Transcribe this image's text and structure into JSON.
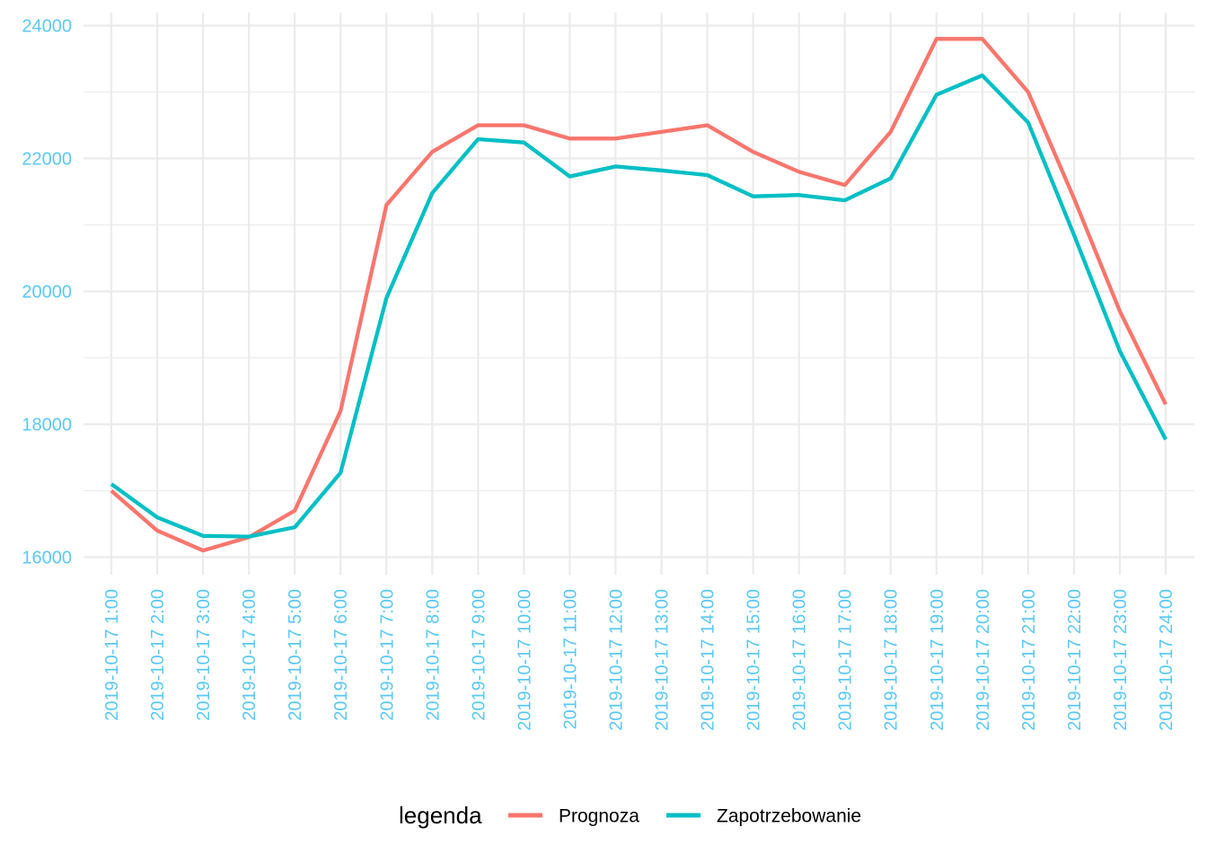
{
  "chart_data": {
    "type": "line",
    "x": [
      "2019-10-17 1:00",
      "2019-10-17 2:00",
      "2019-10-17 3:00",
      "2019-10-17 4:00",
      "2019-10-17 5:00",
      "2019-10-17 6:00",
      "2019-10-17 7:00",
      "2019-10-17 8:00",
      "2019-10-17 9:00",
      "2019-10-17 10:00",
      "2019-10-17 11:00",
      "2019-10-17 12:00",
      "2019-10-17 13:00",
      "2019-10-17 14:00",
      "2019-10-17 15:00",
      "2019-10-17 16:00",
      "2019-10-17 17:00",
      "2019-10-17 18:00",
      "2019-10-17 19:00",
      "2019-10-17 20:00",
      "2019-10-17 21:00",
      "2019-10-17 22:00",
      "2019-10-17 23:00",
      "2019-10-17 24:00"
    ],
    "series": [
      {
        "name": "Prognoza",
        "color": "#F8766D",
        "values": [
          17000,
          16400,
          16100,
          16300,
          16700,
          18200,
          21300,
          22100,
          22500,
          22500,
          22300,
          22300,
          22400,
          22500,
          22100,
          21800,
          21600,
          22400,
          23800,
          23800,
          23000,
          21400,
          19700,
          18300
        ]
      },
      {
        "name": "Zapotrzebowanie",
        "color": "#00BFC4",
        "values": [
          17100,
          16600,
          16320,
          16310,
          16450,
          17270,
          19900,
          21480,
          22290,
          22240,
          21730,
          21880,
          21820,
          21750,
          21430,
          21450,
          21370,
          21700,
          22960,
          23250,
          22540,
          20850,
          19100,
          17770
        ]
      }
    ],
    "ylim": [
      15880,
      24200
    ],
    "yticks": [
      16000,
      18000,
      20000,
      22000,
      24000
    ],
    "grid": true,
    "legend": {
      "title": "legenda",
      "position": "bottom"
    },
    "tick_label_color": "#5BC8F5",
    "grid_color": "#EBEBEB"
  }
}
